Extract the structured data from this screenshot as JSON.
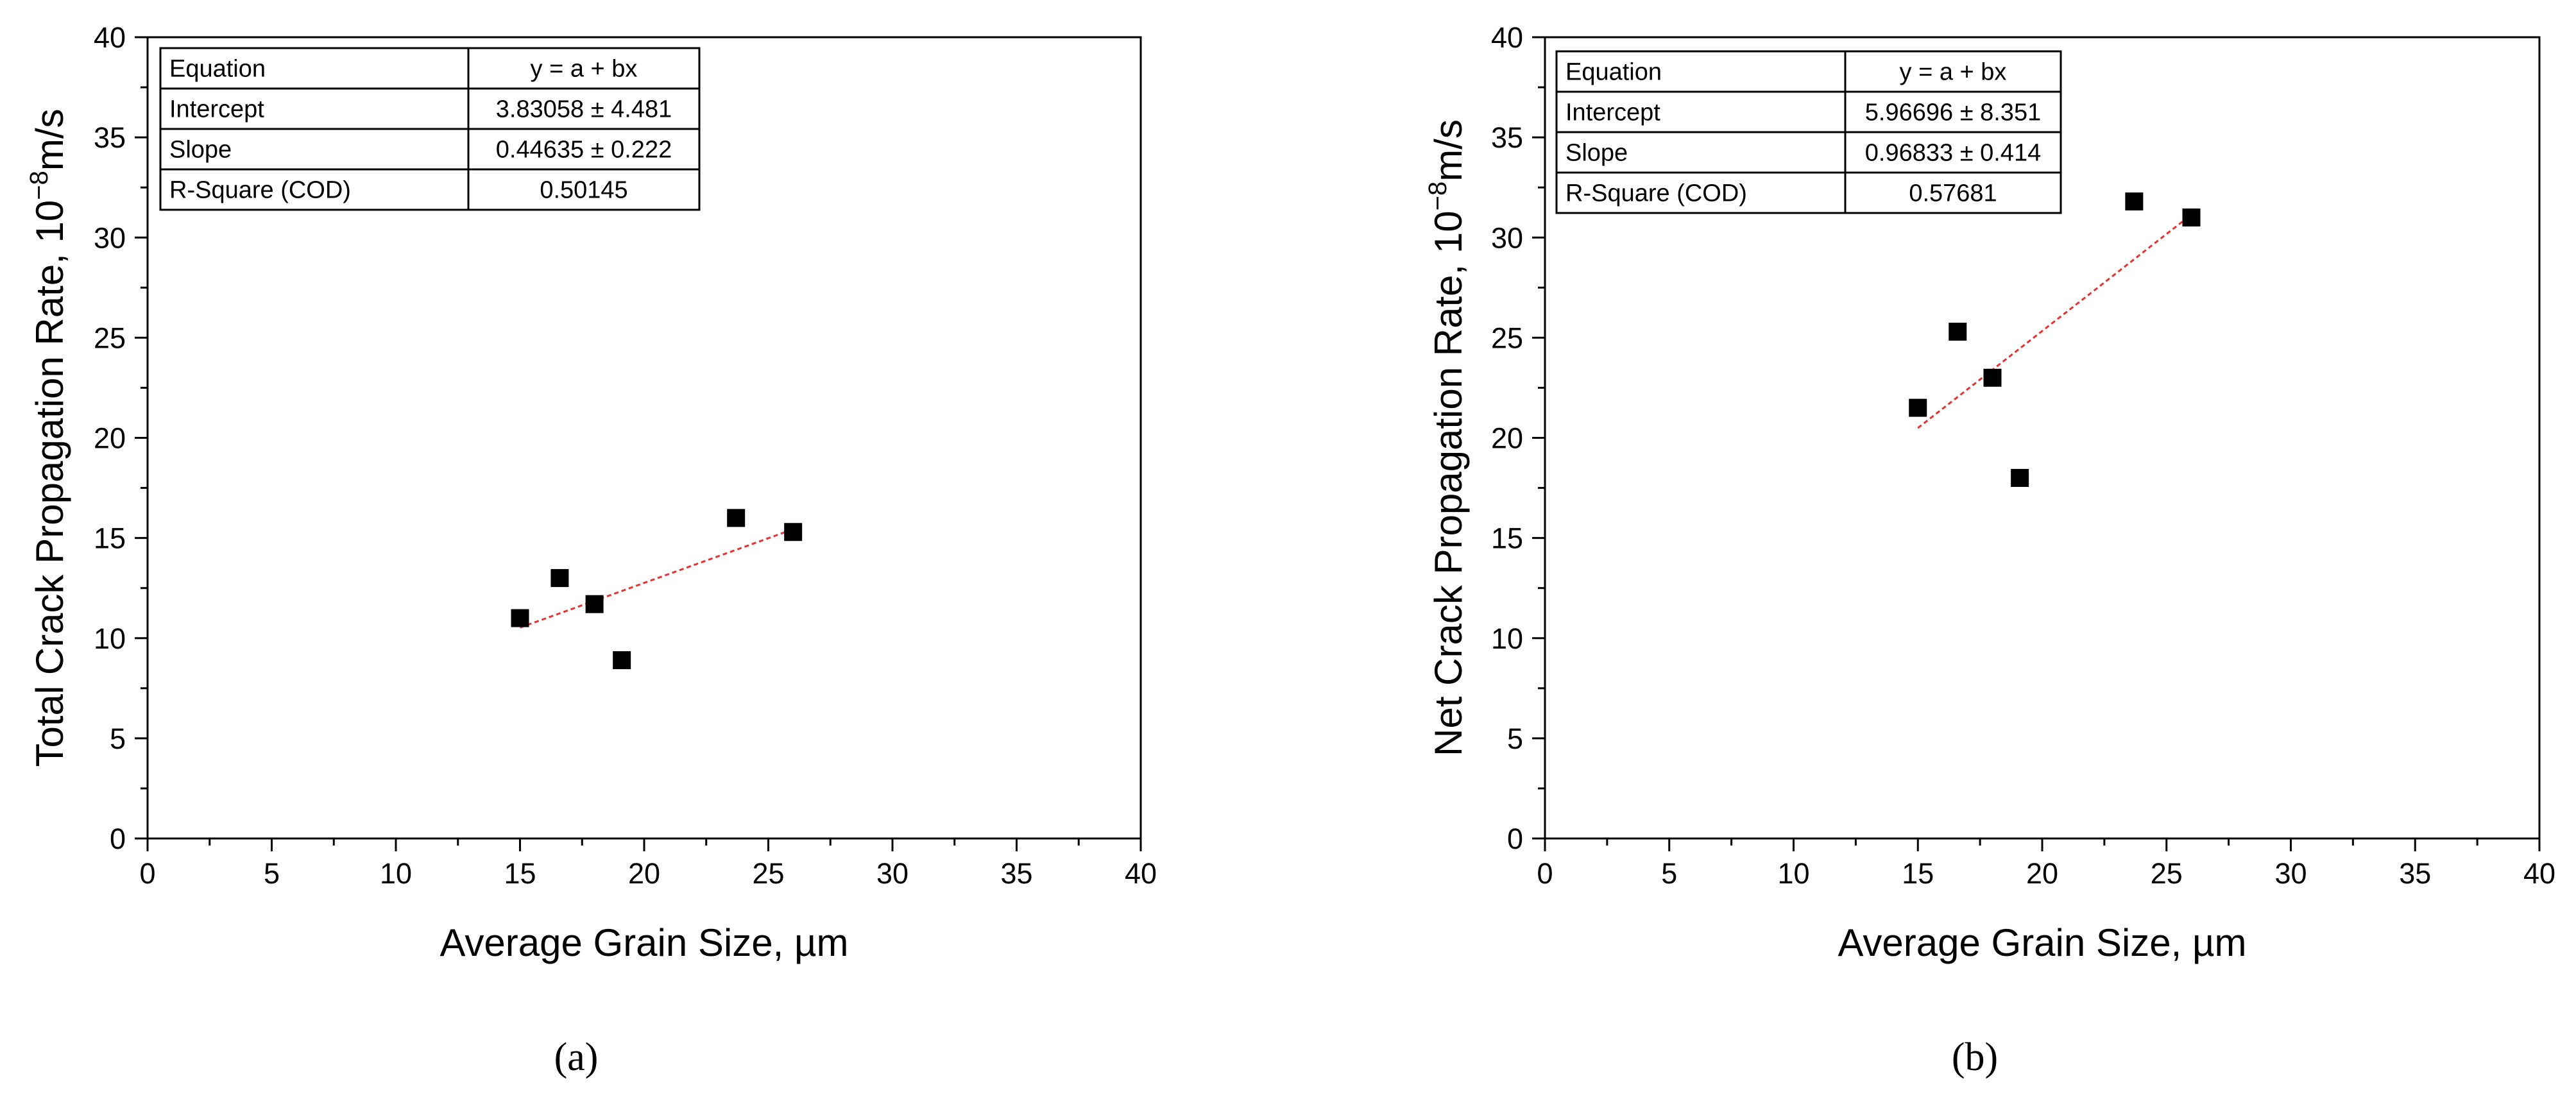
{
  "chart_data": [
    {
      "type": "scatter",
      "panel_label": "(a)",
      "xlabel": "Average Grain Size, µm",
      "ylabel_main": "Total Crack Propagation Rate, 10",
      "ylabel_sup": "−8",
      "ylabel_unit": "m/s",
      "xlim": [
        0,
        40
      ],
      "ylim": [
        0,
        40
      ],
      "xticks": [
        "0",
        "5",
        "10",
        "15",
        "20",
        "25",
        "30",
        "35",
        "40"
      ],
      "yticks": [
        "0",
        "5",
        "10",
        "15",
        "20",
        "25",
        "30",
        "35",
        "40"
      ],
      "grid": false,
      "marker": "filled-square",
      "marker_color": "#000000",
      "fit_line_color": "#e8322f",
      "points": [
        {
          "x": 15.0,
          "y": 11.0
        },
        {
          "x": 16.6,
          "y": 13.0
        },
        {
          "x": 18.0,
          "y": 11.7
        },
        {
          "x": 19.1,
          "y": 8.9
        },
        {
          "x": 23.7,
          "y": 16.0
        },
        {
          "x": 26.0,
          "y": 15.3
        }
      ],
      "fit": {
        "intercept": 3.83058,
        "slope": 0.44635,
        "x_range": [
          15.0,
          26.0
        ]
      },
      "stats_table": [
        [
          "Equation",
          "y = a + bx"
        ],
        [
          "Intercept",
          "3.83058 ± 4.481"
        ],
        [
          "Slope",
          "0.44635 ± 0.222"
        ],
        [
          "R-Square (COD)",
          "0.50145"
        ]
      ]
    },
    {
      "type": "scatter",
      "panel_label": "(b)",
      "xlabel": "Average Grain Size, µm",
      "ylabel_main": "Net Crack Propagation Rate, 10",
      "ylabel_sup": "−8",
      "ylabel_unit": "m/s",
      "xlim": [
        0,
        40
      ],
      "ylim": [
        0,
        40
      ],
      "xticks": [
        "0",
        "5",
        "10",
        "15",
        "20",
        "25",
        "30",
        "35",
        "40"
      ],
      "yticks": [
        "0",
        "5",
        "10",
        "15",
        "20",
        "25",
        "30",
        "35",
        "40"
      ],
      "grid": false,
      "marker": "filled-square",
      "marker_color": "#000000",
      "fit_line_color": "#e8322f",
      "points": [
        {
          "x": 15.0,
          "y": 21.5
        },
        {
          "x": 16.6,
          "y": 25.3
        },
        {
          "x": 18.0,
          "y": 23.0
        },
        {
          "x": 19.1,
          "y": 18.0
        },
        {
          "x": 23.7,
          "y": 31.8
        },
        {
          "x": 26.0,
          "y": 31.0
        }
      ],
      "fit": {
        "intercept": 5.96696,
        "slope": 0.96833,
        "x_range": [
          15.0,
          26.0
        ]
      },
      "stats_table": [
        [
          "Equation",
          "y = a + bx"
        ],
        [
          "Intercept",
          "5.96696 ± 8.351"
        ],
        [
          "Slope",
          "0.96833 ± 0.414"
        ],
        [
          "R-Square (COD)",
          "0.57681"
        ]
      ]
    }
  ]
}
